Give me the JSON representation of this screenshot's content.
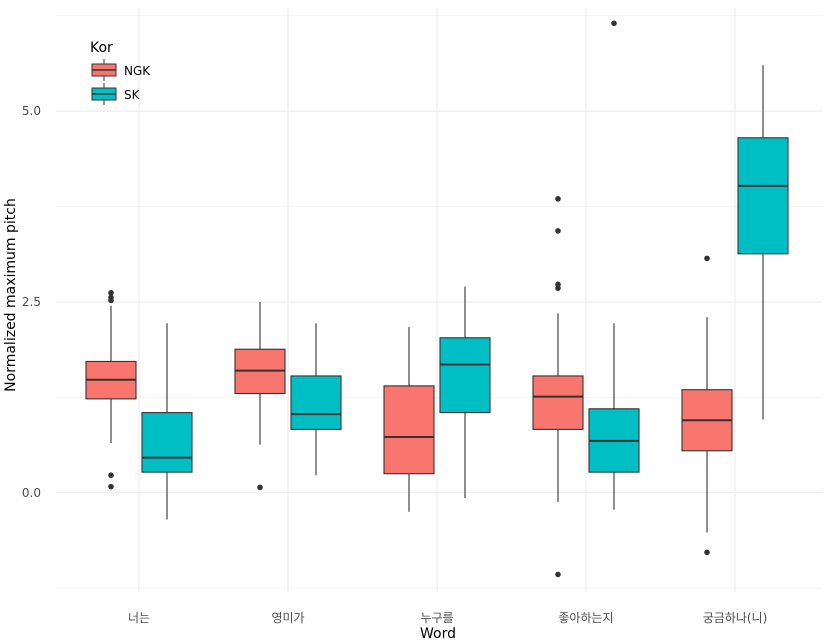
{
  "chart_data": {
    "type": "boxplot",
    "xlabel": "Word",
    "ylabel": "Normalized maximum pitch",
    "ylim": [
      -1.3,
      6.35
    ],
    "y_ticks": [
      0.0,
      2.5,
      5.0
    ],
    "y_tick_labels": [
      "0.0",
      "2.5",
      "5.0"
    ],
    "grid": true,
    "legend": {
      "title": "Kor",
      "position": "top-left",
      "entries": [
        {
          "name": "NGK",
          "color": "#F8766D"
        },
        {
          "name": "SK",
          "color": "#00BFC4"
        }
      ]
    },
    "categories": [
      "너는",
      "영미가",
      "누구를",
      "좋아하는지",
      "궁금하나(니)"
    ],
    "series": [
      {
        "name": "NGK",
        "color": "#F8766D",
        "boxes": [
          {
            "whisker_low": 0.65,
            "q1": 1.23,
            "median": 1.48,
            "q3": 1.72,
            "whisker_high": 2.45,
            "outliers": [
              0.08,
              0.23,
              2.52,
              2.56,
              2.62
            ]
          },
          {
            "whisker_low": 0.63,
            "q1": 1.3,
            "median": 1.6,
            "q3": 1.88,
            "whisker_high": 2.5,
            "outliers": [
              0.07
            ]
          },
          {
            "whisker_low": -0.25,
            "q1": 0.25,
            "median": 0.73,
            "q3": 1.4,
            "whisker_high": 2.17,
            "outliers": []
          },
          {
            "whisker_low": -0.12,
            "q1": 0.83,
            "median": 1.26,
            "q3": 1.53,
            "whisker_high": 2.35,
            "outliers": [
              -1.07,
              2.68,
              2.73,
              3.43,
              3.85
            ]
          },
          {
            "whisker_low": -0.52,
            "q1": 0.55,
            "median": 0.95,
            "q3": 1.35,
            "whisker_high": 2.3,
            "outliers": [
              -0.78,
              3.07
            ]
          }
        ]
      },
      {
        "name": "SK",
        "color": "#00BFC4",
        "boxes": [
          {
            "whisker_low": -0.35,
            "q1": 0.27,
            "median": 0.46,
            "q3": 1.05,
            "whisker_high": 2.22,
            "outliers": []
          },
          {
            "whisker_low": 0.23,
            "q1": 0.83,
            "median": 1.03,
            "q3": 1.53,
            "whisker_high": 2.22,
            "outliers": []
          },
          {
            "whisker_low": -0.07,
            "q1": 1.05,
            "median": 1.68,
            "q3": 2.03,
            "whisker_high": 2.7,
            "outliers": []
          },
          {
            "whisker_low": -0.22,
            "q1": 0.27,
            "median": 0.68,
            "q3": 1.1,
            "whisker_high": 2.22,
            "outliers": [
              6.15
            ]
          },
          {
            "whisker_low": 0.96,
            "q1": 3.13,
            "median": 4.02,
            "q3": 4.65,
            "whisker_high": 5.6,
            "outliers": []
          }
        ]
      }
    ]
  }
}
